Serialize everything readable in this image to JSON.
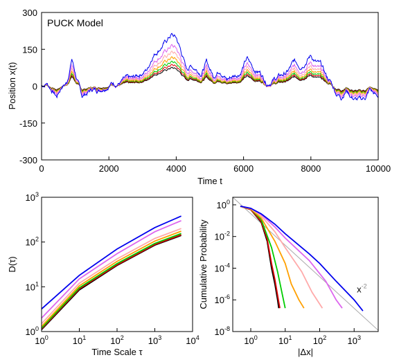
{
  "chart_data": [
    {
      "type": "line",
      "panel": "top",
      "annotation": "PUCK Model",
      "xlabel": "Time t",
      "ylabel": "Position x(t)",
      "xlim": [
        0,
        10000
      ],
      "ylim": [
        -300,
        300
      ],
      "xticks": [
        0,
        2000,
        4000,
        6000,
        8000,
        10000
      ],
      "yticks": [
        -300,
        -150,
        0,
        150,
        300
      ],
      "series_colors": [
        "#000000",
        "#dd0000",
        "#00cc00",
        "#ffa000",
        "#ffaaaa",
        "#dd66ee",
        "#0000ee"
      ],
      "base_path": {
        "t": [
          0,
          150,
          300,
          450,
          600,
          750,
          900,
          1050,
          1200,
          1350,
          1500,
          1700,
          1900,
          2100,
          2300,
          2500,
          2700,
          2850,
          3000,
          3150,
          3300,
          3500,
          3700,
          3850,
          4000,
          4150,
          4300,
          4450,
          4600,
          4750,
          4900,
          5100,
          5300,
          5500,
          5700,
          5900,
          6100,
          6300,
          6500,
          6700,
          6900,
          7100,
          7300,
          7500,
          7700,
          7900,
          8000,
          8150,
          8300,
          8450,
          8600,
          8750,
          8900,
          9050,
          9200,
          9350,
          9500,
          9650,
          9750,
          9850,
          9950,
          10000
        ],
        "x": [
          0,
          5,
          -5,
          -15,
          0,
          5,
          40,
          10,
          -15,
          -10,
          -5,
          -5,
          0,
          5,
          5,
          10,
          10,
          15,
          20,
          25,
          45,
          55,
          65,
          75,
          70,
          50,
          25,
          30,
          25,
          20,
          35,
          15,
          25,
          10,
          15,
          20,
          40,
          25,
          20,
          5,
          10,
          15,
          20,
          35,
          30,
          40,
          45,
          35,
          30,
          15,
          5,
          -10,
          -15,
          -5,
          -15,
          -20,
          -20,
          -15,
          -5,
          -10,
          -15,
          -15
        ]
      },
      "series_amplification": [
        1.0,
        1.15,
        1.32,
        1.55,
        1.85,
        2.2,
        2.8
      ]
    },
    {
      "type": "line",
      "panel": "bottom-left",
      "xlabel": "Time Scale τ",
      "ylabel": "D(τ)",
      "xscale": "log",
      "yscale": "log",
      "xlim": [
        1,
        10000
      ],
      "ylim": [
        1,
        1000
      ],
      "xtick_labels": [
        {
          "base": "10",
          "exp": "0"
        },
        {
          "base": "10",
          "exp": "1"
        },
        {
          "base": "10",
          "exp": "2"
        },
        {
          "base": "10",
          "exp": "3"
        },
        {
          "base": "10",
          "exp": "4"
        }
      ],
      "ytick_labels": [
        {
          "base": "10",
          "exp": "0"
        },
        {
          "base": "10",
          "exp": "1"
        },
        {
          "base": "10",
          "exp": "2"
        },
        {
          "base": "10",
          "exp": "3"
        }
      ],
      "series": [
        {
          "color": "#000000",
          "points": [
            [
              1,
              1.1
            ],
            [
              10,
              8.5
            ],
            [
              100,
              30
            ],
            [
              1000,
              85
            ],
            [
              5000,
              140
            ]
          ]
        },
        {
          "color": "#dd0000",
          "points": [
            [
              1,
              1.15
            ],
            [
              10,
              9
            ],
            [
              100,
              31
            ],
            [
              1000,
              88
            ],
            [
              5000,
              145
            ]
          ]
        },
        {
          "color": "#00cc00",
          "points": [
            [
              1,
              1.2
            ],
            [
              10,
              9.5
            ],
            [
              100,
              33
            ],
            [
              1000,
              93
            ],
            [
              5000,
              155
            ]
          ]
        },
        {
          "color": "#ffa000",
          "points": [
            [
              1,
              1.3
            ],
            [
              10,
              10.5
            ],
            [
              100,
              37
            ],
            [
              1000,
              105
            ],
            [
              5000,
              175
            ]
          ]
        },
        {
          "color": "#ffaaaa",
          "points": [
            [
              1,
              1.5
            ],
            [
              10,
              12
            ],
            [
              100,
              42
            ],
            [
              1000,
              120
            ],
            [
              5000,
              200
            ]
          ]
        },
        {
          "color": "#dd66ee",
          "points": [
            [
              1,
              2
            ],
            [
              10,
              15
            ],
            [
              100,
              55
            ],
            [
              1000,
              170
            ],
            [
              5000,
              300
            ]
          ]
        },
        {
          "color": "#0000ee",
          "points": [
            [
              1,
              3.2
            ],
            [
              10,
              18
            ],
            [
              100,
              70
            ],
            [
              1000,
              210
            ],
            [
              5000,
              380
            ]
          ]
        }
      ]
    },
    {
      "type": "line",
      "panel": "bottom-right",
      "xlabel": "|Δx|",
      "ylabel": "Cumulative Probability",
      "xscale": "log",
      "yscale": "log",
      "xlim": [
        0.3,
        5000
      ],
      "ylim": [
        1e-08,
        3
      ],
      "xtick_labels": [
        {
          "base": "10",
          "exp": "0"
        },
        {
          "base": "10",
          "exp": "1"
        },
        {
          "base": "10",
          "exp": "2"
        },
        {
          "base": "10",
          "exp": "3"
        }
      ],
      "ytick_labels": [
        {
          "base": "10",
          "exp": "0"
        },
        {
          "base": "10",
          "exp": "-2"
        },
        {
          "base": "10",
          "exp": "-4"
        },
        {
          "base": "10",
          "exp": "-6"
        },
        {
          "base": "10",
          "exp": "-8"
        }
      ],
      "reference": {
        "label_base": "x",
        "label_exp": "-2",
        "color": "#aaaaaa",
        "points": [
          [
            0.3,
            3
          ],
          [
            5000,
            1.2e-08
          ]
        ]
      },
      "series": [
        {
          "color": "#000000",
          "points": [
            [
              0.5,
              0.8
            ],
            [
              1,
              0.5
            ],
            [
              2,
              0.08
            ],
            [
              3,
              0.005
            ],
            [
              4,
              0.0001
            ],
            [
              5,
              1e-05
            ],
            [
              6,
              1e-06
            ],
            [
              6.5,
              3e-07
            ]
          ]
        },
        {
          "color": "#dd0000",
          "points": [
            [
              0.5,
              0.8
            ],
            [
              1,
              0.5
            ],
            [
              2,
              0.09
            ],
            [
              3,
              0.007
            ],
            [
              4,
              0.0002
            ],
            [
              5,
              2e-05
            ],
            [
              6,
              2e-06
            ],
            [
              7,
              3e-07
            ]
          ]
        },
        {
          "color": "#00cc00",
          "points": [
            [
              0.5,
              0.8
            ],
            [
              1,
              0.55
            ],
            [
              2,
              0.12
            ],
            [
              4,
              0.002
            ],
            [
              6,
              6e-05
            ],
            [
              8,
              3e-06
            ],
            [
              10,
              3e-07
            ]
          ]
        },
        {
          "color": "#ffa000",
          "points": [
            [
              0.5,
              0.8
            ],
            [
              1,
              0.55
            ],
            [
              2,
              0.15
            ],
            [
              5,
              0.005
            ],
            [
              10,
              0.0002
            ],
            [
              15,
              1e-05
            ],
            [
              25,
              1e-06
            ],
            [
              35,
              3e-07
            ]
          ]
        },
        {
          "color": "#ffaaaa",
          "points": [
            [
              0.5,
              0.8
            ],
            [
              1,
              0.58
            ],
            [
              2,
              0.2
            ],
            [
              5,
              0.02
            ],
            [
              10,
              0.002
            ],
            [
              30,
              6e-05
            ],
            [
              60,
              3e-06
            ],
            [
              120,
              3e-07
            ]
          ]
        },
        {
          "color": "#dd66ee",
          "points": [
            [
              0.5,
              0.82
            ],
            [
              1,
              0.6
            ],
            [
              2,
              0.25
            ],
            [
              5,
              0.04
            ],
            [
              10,
              0.008
            ],
            [
              50,
              0.0003
            ],
            [
              150,
              1.5e-05
            ],
            [
              300,
              1e-06
            ],
            [
              450,
              3e-07
            ]
          ]
        },
        {
          "color": "#0000ee",
          "points": [
            [
              0.5,
              0.82
            ],
            [
              1,
              0.6
            ],
            [
              2,
              0.27
            ],
            [
              5,
              0.06
            ],
            [
              10,
              0.015
            ],
            [
              50,
              0.0008
            ],
            [
              100,
              0.0002
            ],
            [
              300,
              1.5e-05
            ],
            [
              1000,
              1e-06
            ],
            [
              1800,
              2e-07
            ]
          ]
        }
      ]
    }
  ]
}
